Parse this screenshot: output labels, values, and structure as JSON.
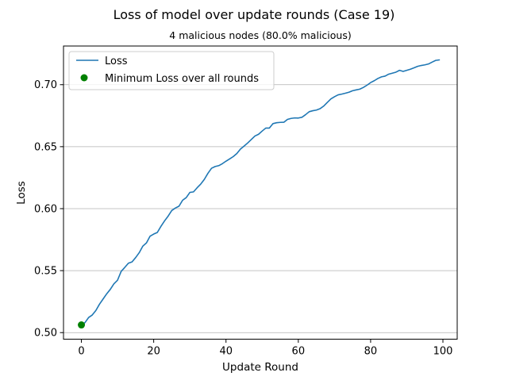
{
  "chart_data": {
    "type": "line",
    "title": "Loss of model over update rounds (Case 19)",
    "subtitle": "4 malicious nodes (80.0% malicious)",
    "xlabel": "Update Round",
    "ylabel": "Loss",
    "xlim": [
      -4.95,
      103.95
    ],
    "ylim": [
      0.4947,
      0.7312
    ],
    "xticks": [
      0,
      20,
      40,
      60,
      80,
      100
    ],
    "yticks": [
      0.5,
      0.55,
      0.6,
      0.65,
      0.7
    ],
    "xtick_labels": [
      "0",
      "20",
      "40",
      "60",
      "80",
      "100"
    ],
    "ytick_labels": [
      "0.50",
      "0.55",
      "0.60",
      "0.65",
      "0.70"
    ],
    "grid": "horizontal",
    "legend_position": "top-left",
    "legend": [
      {
        "label": "Loss",
        "kind": "line",
        "color": "#1f77b4"
      },
      {
        "label": "Minimum Loss over all rounds",
        "kind": "marker",
        "color": "#008000"
      }
    ],
    "series": [
      {
        "name": "Loss",
        "color": "#1f77b4",
        "x": [
          0,
          1,
          2,
          3,
          4,
          5,
          6,
          7,
          8,
          9,
          10,
          11,
          12,
          13,
          14,
          15,
          16,
          17,
          18,
          19,
          20,
          21,
          22,
          23,
          24,
          25,
          26,
          27,
          28,
          29,
          30,
          31,
          32,
          33,
          34,
          35,
          36,
          37,
          38,
          39,
          40,
          41,
          42,
          43,
          44,
          45,
          46,
          47,
          48,
          49,
          50,
          51,
          52,
          53,
          54,
          55,
          56,
          57,
          58,
          59,
          60,
          61,
          62,
          63,
          64,
          65,
          66,
          67,
          68,
          69,
          70,
          71,
          72,
          73,
          74,
          75,
          76,
          77,
          78,
          79,
          80,
          81,
          82,
          83,
          84,
          85,
          86,
          87,
          88,
          89,
          90,
          91,
          92,
          93,
          94,
          95,
          96,
          97,
          98,
          99
        ],
        "values": [
          0.5062,
          0.5081,
          0.5122,
          0.5142,
          0.5178,
          0.5229,
          0.5271,
          0.5313,
          0.5349,
          0.5394,
          0.5423,
          0.5494,
          0.5526,
          0.556,
          0.557,
          0.5605,
          0.5645,
          0.5698,
          0.5724,
          0.5778,
          0.5795,
          0.5808,
          0.5857,
          0.5901,
          0.594,
          0.5985,
          0.6005,
          0.602,
          0.6068,
          0.6089,
          0.6131,
          0.6135,
          0.6168,
          0.6198,
          0.6236,
          0.6285,
          0.6326,
          0.634,
          0.6347,
          0.6363,
          0.6383,
          0.6401,
          0.642,
          0.6445,
          0.6481,
          0.6505,
          0.653,
          0.6558,
          0.6586,
          0.66,
          0.6626,
          0.665,
          0.665,
          0.6686,
          0.6693,
          0.6696,
          0.6697,
          0.672,
          0.6728,
          0.6732,
          0.6731,
          0.6737,
          0.6758,
          0.6782,
          0.679,
          0.6795,
          0.6806,
          0.6827,
          0.6856,
          0.6885,
          0.6903,
          0.6918,
          0.6924,
          0.6931,
          0.6939,
          0.6951,
          0.6958,
          0.6964,
          0.6978,
          0.6996,
          0.7017,
          0.7032,
          0.705,
          0.7063,
          0.7069,
          0.7085,
          0.7093,
          0.7101,
          0.7116,
          0.7107,
          0.7116,
          0.7125,
          0.7136,
          0.7148,
          0.7155,
          0.716,
          0.7167,
          0.7182,
          0.7196,
          0.72
        ]
      }
    ],
    "markers": [
      {
        "name": "Minimum Loss over all rounds",
        "x": 0,
        "y": 0.5062,
        "color": "#008000"
      }
    ]
  }
}
